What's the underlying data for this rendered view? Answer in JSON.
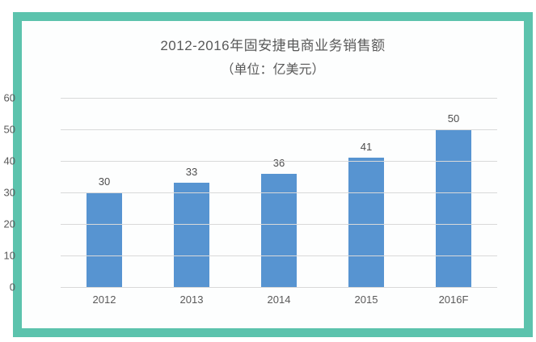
{
  "colors": {
    "frame_border": "#5cc3ad",
    "bar": "#5794d1",
    "text": "#595959",
    "gridline": "#d9d9d9",
    "chart_background": "#fdfefe"
  },
  "chart_data": {
    "type": "bar",
    "title": "2012-2016年固安捷电商业务销售额",
    "subtitle": "（单位：亿美元）",
    "categories": [
      "2012",
      "2013",
      "2014",
      "2015",
      "2016F"
    ],
    "values": [
      30,
      33,
      36,
      41,
      50
    ],
    "xlabel": "",
    "ylabel": "",
    "ylim": [
      0,
      60
    ],
    "yticks": [
      0,
      10,
      20,
      30,
      40,
      50,
      60
    ],
    "grid": true,
    "legend_position": "none",
    "data_labels": true
  }
}
